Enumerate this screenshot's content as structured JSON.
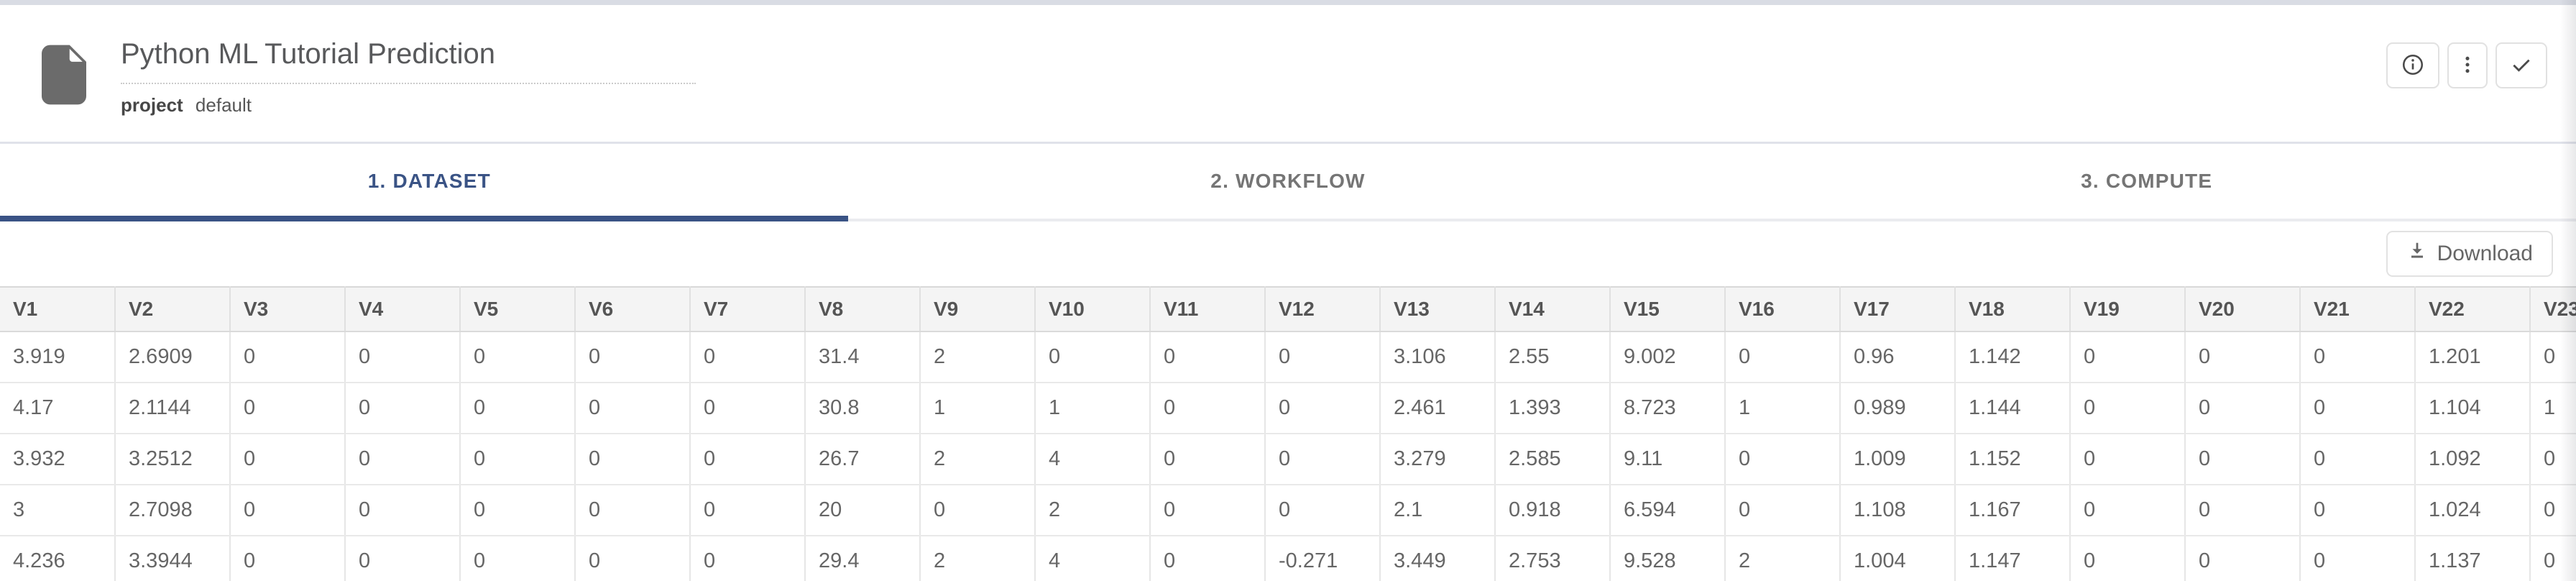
{
  "header": {
    "title": "Python ML Tutorial Prediction",
    "project_label": "project",
    "project_value": "default",
    "file_icon": "file-icon",
    "action_icons": [
      "info-icon",
      "kebab-menu-icon",
      "check-icon"
    ]
  },
  "tabs": [
    {
      "label": "1. DATASET",
      "active": true
    },
    {
      "label": "2. WORKFLOW",
      "active": false
    },
    {
      "label": "3. COMPUTE",
      "active": false
    }
  ],
  "toolbar": {
    "download_label": "Download",
    "download_icon": "download-icon"
  },
  "table": {
    "columns": [
      "V1",
      "V2",
      "V3",
      "V4",
      "V5",
      "V6",
      "V7",
      "V8",
      "V9",
      "V10",
      "V11",
      "V12",
      "V13",
      "V14",
      "V15",
      "V16",
      "V17",
      "V18",
      "V19",
      "V20",
      "V21",
      "V22",
      "V23"
    ],
    "rows": [
      [
        "3.919",
        "2.6909",
        "0",
        "0",
        "0",
        "0",
        "0",
        "31.4",
        "2",
        "0",
        "0",
        "0",
        "3.106",
        "2.55",
        "9.002",
        "0",
        "0.96",
        "1.142",
        "0",
        "0",
        "0",
        "1.201",
        "0"
      ],
      [
        "4.17",
        "2.1144",
        "0",
        "0",
        "0",
        "0",
        "0",
        "30.8",
        "1",
        "1",
        "0",
        "0",
        "2.461",
        "1.393",
        "8.723",
        "1",
        "0.989",
        "1.144",
        "0",
        "0",
        "0",
        "1.104",
        "1"
      ],
      [
        "3.932",
        "3.2512",
        "0",
        "0",
        "0",
        "0",
        "0",
        "26.7",
        "2",
        "4",
        "0",
        "0",
        "3.279",
        "2.585",
        "9.11",
        "0",
        "1.009",
        "1.152",
        "0",
        "0",
        "0",
        "1.092",
        "0"
      ],
      [
        "3",
        "2.7098",
        "0",
        "0",
        "0",
        "0",
        "0",
        "20",
        "0",
        "2",
        "0",
        "0",
        "2.1",
        "0.918",
        "6.594",
        "0",
        "1.108",
        "1.167",
        "0",
        "0",
        "0",
        "1.024",
        "0"
      ],
      [
        "4.236",
        "3.3944",
        "0",
        "0",
        "0",
        "0",
        "0",
        "29.4",
        "2",
        "4",
        "0",
        "-0.271",
        "3.449",
        "2.753",
        "9.528",
        "2",
        "1.004",
        "1.147",
        "0",
        "0",
        "0",
        "1.137",
        "0"
      ]
    ]
  },
  "colors": {
    "accent_blue": "#3A5385",
    "tab_inactive": "#757575",
    "icon_gray": "#6B6B6B",
    "button_icon_gray": "#4A4A4A",
    "table_header_bg": "#F4F4F4",
    "top_strip": "#D9DCE4"
  }
}
